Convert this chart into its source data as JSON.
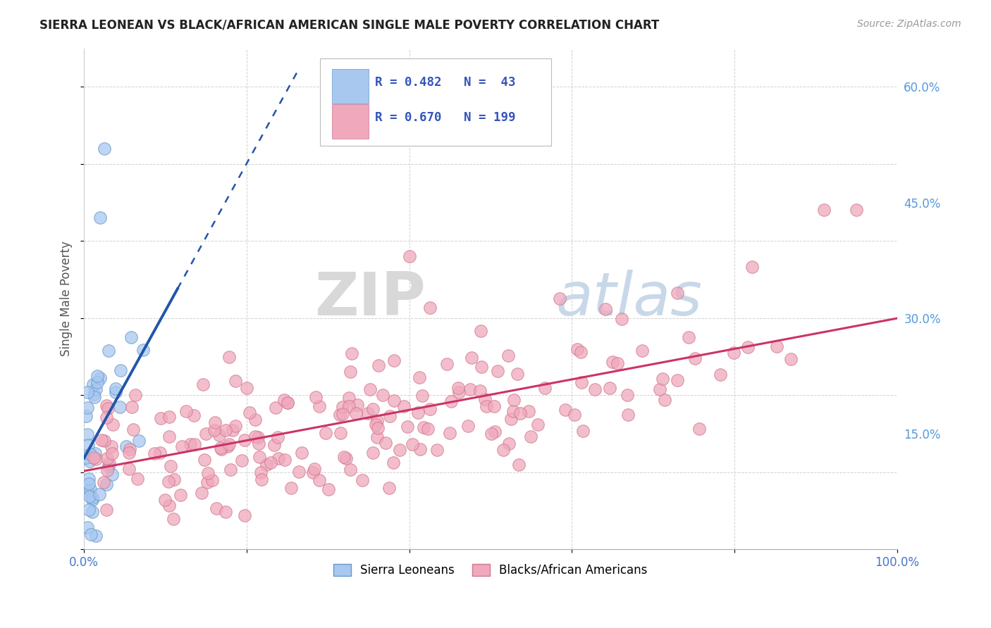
{
  "title": "SIERRA LEONEAN VS BLACK/AFRICAN AMERICAN SINGLE MALE POVERTY CORRELATION CHART",
  "source": "Source: ZipAtlas.com",
  "ylabel": "Single Male Poverty",
  "xlim": [
    0,
    1.0
  ],
  "ylim": [
    0,
    0.65
  ],
  "xticks": [
    0.0,
    0.2,
    0.4,
    0.6,
    0.8,
    1.0
  ],
  "xticklabels": [
    "0.0%",
    "",
    "",
    "",
    "",
    "100.0%"
  ],
  "yticks_right": [
    0.15,
    0.3,
    0.45,
    0.6
  ],
  "yticklabels_right": [
    "15.0%",
    "30.0%",
    "45.0%",
    "60.0%"
  ],
  "blue_scatter_color": "#a8c8f0",
  "blue_edge_color": "#6699cc",
  "pink_scatter_color": "#f0a8bc",
  "pink_edge_color": "#d07890",
  "blue_line_color": "#2255aa",
  "pink_line_color": "#cc3366",
  "watermark_zip": "ZIP",
  "watermark_atlas": "atlas",
  "background_color": "#ffffff",
  "grid_color": "#cccccc",
  "legend_R_N_color": "#3355bb",
  "right_axis_color": "#5599dd",
  "seed": 42
}
